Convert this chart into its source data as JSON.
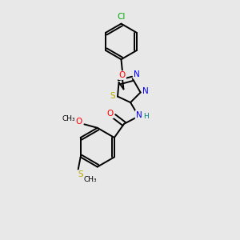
{
  "background_color": "#e8e8e8",
  "bond_color": "#000000",
  "figsize": [
    3.0,
    3.0
  ],
  "dpi": 100,
  "atom_colors": {
    "Cl": "#00aa00",
    "O": "#ff0000",
    "S": "#bbaa00",
    "N": "#0000ff",
    "H": "#008080",
    "C": "#000000"
  },
  "lw": 1.4
}
